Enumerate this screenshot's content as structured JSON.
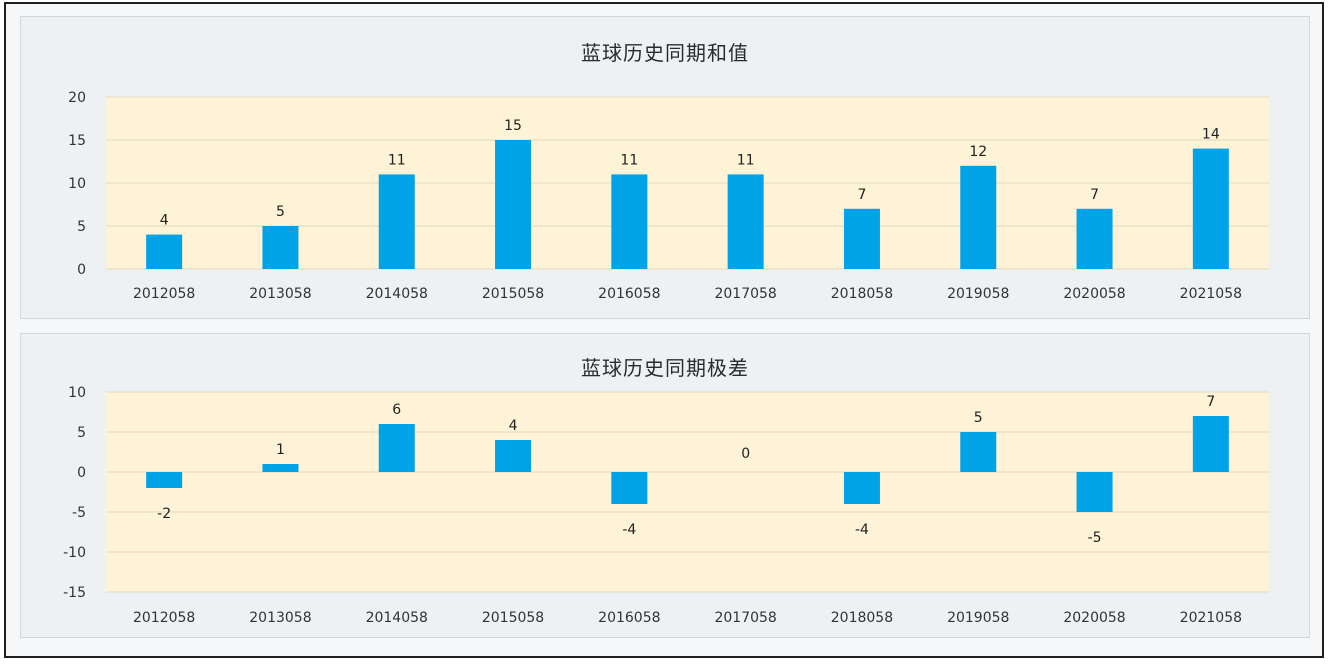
{
  "chart_data": [
    {
      "type": "bar",
      "title": "蓝球历史同期和值",
      "categories": [
        "2012058",
        "2013058",
        "2014058",
        "2015058",
        "2016058",
        "2017058",
        "2018058",
        "2019058",
        "2020058",
        "2021058"
      ],
      "values": [
        4,
        5,
        11,
        15,
        11,
        11,
        7,
        12,
        7,
        14
      ],
      "yticks": [
        20,
        15,
        10,
        5,
        0
      ],
      "ylim": [
        0,
        20
      ],
      "grid": true,
      "bar_color": "#00a2e8",
      "plot_bg": "#fef3d6"
    },
    {
      "type": "bar",
      "title": "蓝球历史同期极差",
      "categories": [
        "2012058",
        "2013058",
        "2014058",
        "2015058",
        "2016058",
        "2017058",
        "2018058",
        "2019058",
        "2020058",
        "2021058"
      ],
      "values": [
        -2,
        1,
        6,
        4,
        -4,
        0,
        -4,
        5,
        -5,
        7
      ],
      "yticks": [
        10,
        5,
        0,
        -5,
        -10,
        -15
      ],
      "ylim": [
        -15,
        10
      ],
      "grid": true,
      "bar_color": "#00a2e8",
      "plot_bg": "#fef3d6"
    }
  ]
}
